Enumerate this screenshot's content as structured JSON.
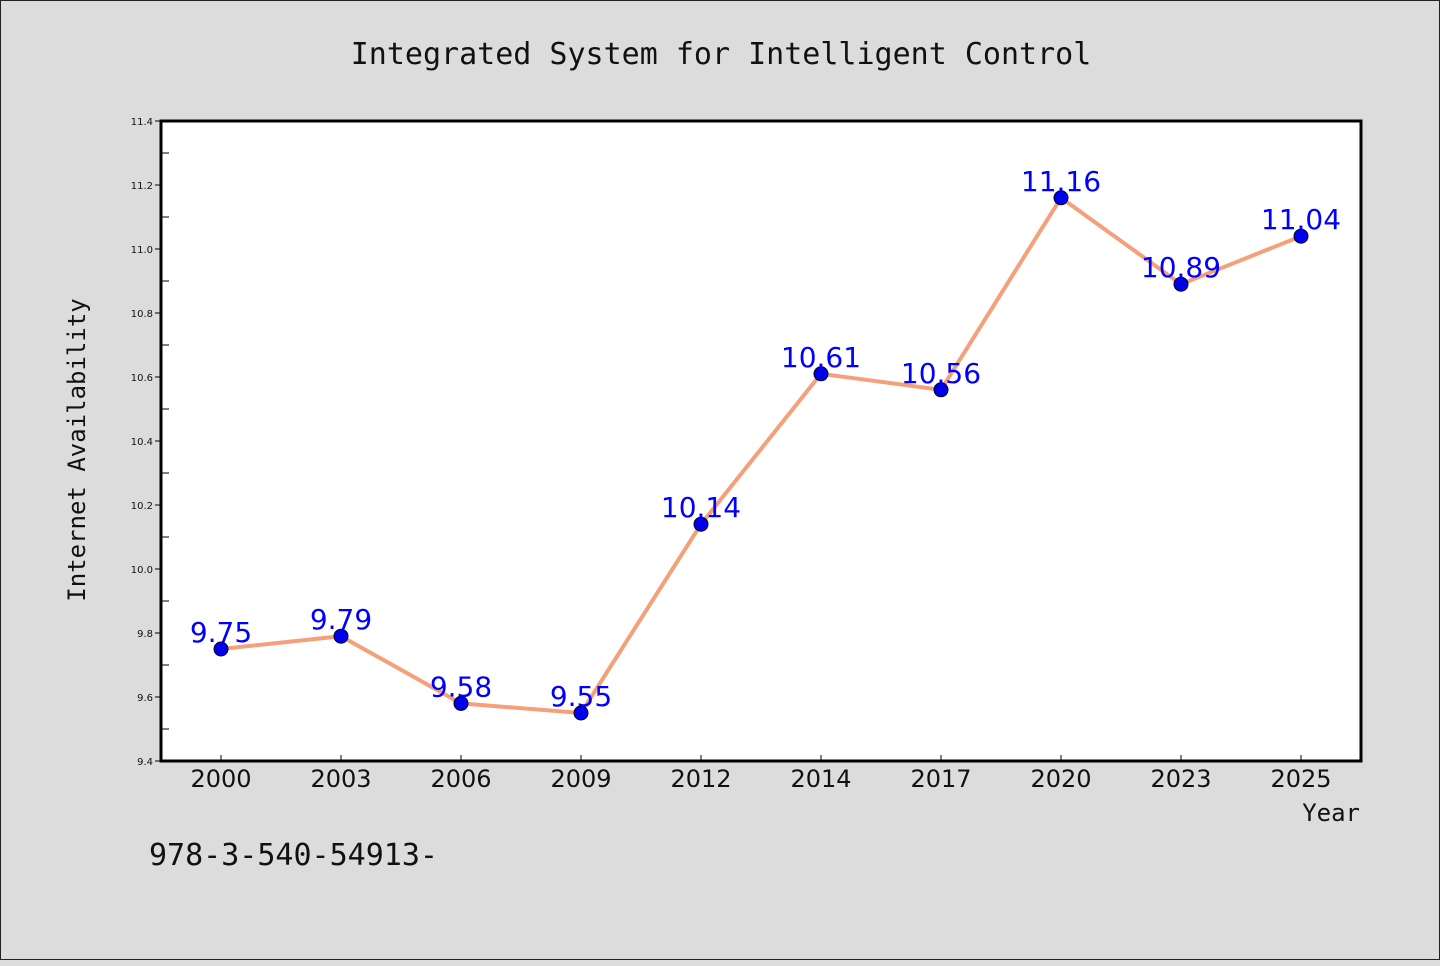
{
  "chart_data": {
    "type": "line",
    "title": "Integrated System for Intelligent Control",
    "xlabel": "Year",
    "ylabel": "Internet Availability",
    "categories": [
      "2000",
      "2003",
      "2006",
      "2009",
      "2012",
      "2014",
      "2017",
      "2020",
      "2023",
      "2025"
    ],
    "series": [
      {
        "values": [
          9.75,
          9.79,
          9.58,
          9.55,
          10.14,
          10.61,
          10.56,
          11.16,
          10.89,
          11.04
        ],
        "line_color": "#f4a07a",
        "marker_color": "#0000ee"
      }
    ],
    "data_labels": [
      "9.75",
      "9.79",
      "9.58",
      "9.55",
      "10.14",
      "10.61",
      "10.56",
      "11.16",
      "10.89",
      "11.04"
    ],
    "ylim": [
      9.4,
      11.4
    ],
    "yticks": [
      9.4,
      9.6,
      9.8,
      10.0,
      10.2,
      10.4,
      10.6,
      10.8,
      11.0,
      11.2,
      11.4
    ],
    "ytick_labels": [
      "9.4",
      "9.6",
      "9.8",
      "10.0",
      "10.2",
      "10.4",
      "10.6",
      "10.8",
      "11.0",
      "11.2",
      "11.4"
    ],
    "grid": false,
    "legend": "none",
    "data_label_color": "#0000ff",
    "background_color": "#dcdcdc",
    "plot_background_color": "#ffffff"
  },
  "footer": {
    "text": "978-3-540-54913-"
  }
}
